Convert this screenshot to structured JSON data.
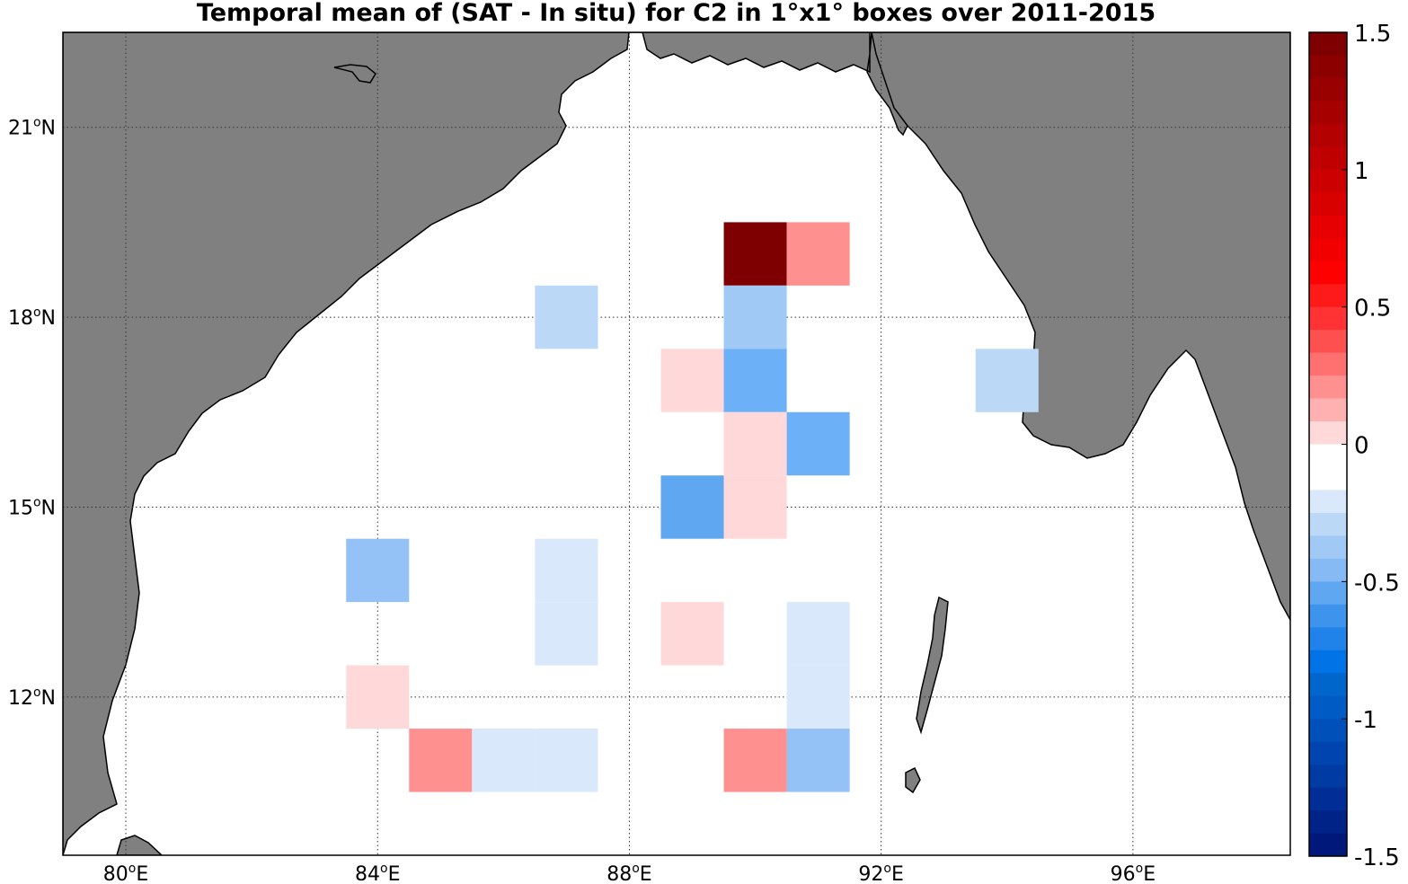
{
  "title": "Temporal mean of (SAT - In situ) for C2 in 1°x1° boxes over 2011-2015",
  "map": {
    "region": "Bay of Bengal",
    "lon_range": [
      79,
      98.5
    ],
    "lat_range": [
      9.5,
      22.5
    ],
    "grid": true,
    "land_color": "#808080",
    "ocean_color": "#ffffff"
  },
  "x_ticks": [
    {
      "lon": 80,
      "label": "80",
      "sup": "o",
      "suffix": "E"
    },
    {
      "lon": 84,
      "label": "84",
      "sup": "o",
      "suffix": "E"
    },
    {
      "lon": 88,
      "label": "88",
      "sup": "o",
      "suffix": "E"
    },
    {
      "lon": 92,
      "label": "92",
      "sup": "o",
      "suffix": "E"
    },
    {
      "lon": 96,
      "label": "96",
      "sup": "o",
      "suffix": "E"
    }
  ],
  "y_ticks": [
    {
      "lat": 21,
      "label": "21",
      "sup": "o",
      "suffix": "N"
    },
    {
      "lat": 18,
      "label": "18",
      "sup": "o",
      "suffix": "N"
    },
    {
      "lat": 15,
      "label": "15",
      "sup": "o",
      "suffix": "N"
    },
    {
      "lat": 12,
      "label": "12",
      "sup": "o",
      "suffix": "N"
    }
  ],
  "colorbar": {
    "range": [
      -1.5,
      1.5
    ],
    "ticks": [
      "1.5",
      "1",
      "0.5",
      "0",
      "-0.5",
      "-1",
      "-1.5"
    ],
    "colors_top_to_bottom": [
      "#7f0000",
      "#8c0000",
      "#990000",
      "#a60000",
      "#b30000",
      "#c00000",
      "#cc0000",
      "#d90000",
      "#e60000",
      "#f20000",
      "#ff0000",
      "#ff1a1a",
      "#ff3333",
      "#ff5050",
      "#ff7070",
      "#ff9090",
      "#ffb0b0",
      "#ffd9d9",
      "#ffffff",
      "#ffffff",
      "#d9e9fb",
      "#bcd8f7",
      "#a1c9f5",
      "#86baf4",
      "#5fa7f0",
      "#3e94ec",
      "#1f83ea",
      "#0073e6",
      "#0066cc",
      "#005bc4",
      "#0050ba",
      "#0044b0",
      "#003aa3",
      "#002e96",
      "#002388",
      "#00187a"
    ]
  },
  "chart_data": {
    "type": "heatmap",
    "title": "Temporal mean of (SAT - In situ) for C2 in 1°x1° boxes over 2011-2015",
    "x_unit": "degrees E",
    "y_unit": "degrees N",
    "cell_size_deg": 1,
    "cells": [
      {
        "lon": 90,
        "lat": 19,
        "value": 1.5,
        "color": "#7f0000"
      },
      {
        "lon": 91,
        "lat": 19,
        "value": 0.4,
        "color": "#ff9090"
      },
      {
        "lon": 87,
        "lat": 18,
        "value": -0.2,
        "color": "#bcd8f7"
      },
      {
        "lon": 90,
        "lat": 18,
        "value": -0.3,
        "color": "#a1c9f5"
      },
      {
        "lon": 89,
        "lat": 17,
        "value": 0.1,
        "color": "#ffd9d9"
      },
      {
        "lon": 90,
        "lat": 17,
        "value": -0.4,
        "color": "#6cb0f7"
      },
      {
        "lon": 94,
        "lat": 17,
        "value": -0.2,
        "color": "#bcd8f7"
      },
      {
        "lon": 90,
        "lat": 16,
        "value": 0.1,
        "color": "#ffd9d9"
      },
      {
        "lon": 91,
        "lat": 16,
        "value": -0.4,
        "color": "#6cb0f7"
      },
      {
        "lon": 89,
        "lat": 15,
        "value": -0.5,
        "color": "#5fa7f0"
      },
      {
        "lon": 90,
        "lat": 15,
        "value": 0.1,
        "color": "#ffd9d9"
      },
      {
        "lon": 84,
        "lat": 14,
        "value": -0.3,
        "color": "#94c2f7"
      },
      {
        "lon": 87,
        "lat": 14,
        "value": -0.1,
        "color": "#d9e9fb"
      },
      {
        "lon": 87,
        "lat": 13,
        "value": -0.1,
        "color": "#d9e9fb"
      },
      {
        "lon": 89,
        "lat": 13,
        "value": 0.1,
        "color": "#ffd9d9"
      },
      {
        "lon": 91,
        "lat": 13,
        "value": -0.1,
        "color": "#d9e9fb"
      },
      {
        "lon": 84,
        "lat": 12,
        "value": 0.1,
        "color": "#ffd9d9"
      },
      {
        "lon": 91,
        "lat": 12,
        "value": -0.1,
        "color": "#d9e9fb"
      },
      {
        "lon": 85,
        "lat": 11,
        "value": 0.4,
        "color": "#ff9090"
      },
      {
        "lon": 86,
        "lat": 11,
        "value": -0.1,
        "color": "#d9e9fb"
      },
      {
        "lon": 87,
        "lat": 11,
        "value": -0.1,
        "color": "#d9e9fb"
      },
      {
        "lon": 90,
        "lat": 11,
        "value": 0.4,
        "color": "#ff9090"
      },
      {
        "lon": 91,
        "lat": 11,
        "value": -0.3,
        "color": "#94c2f7"
      }
    ],
    "colorbar_range": [
      -1.5,
      1.5
    ]
  }
}
